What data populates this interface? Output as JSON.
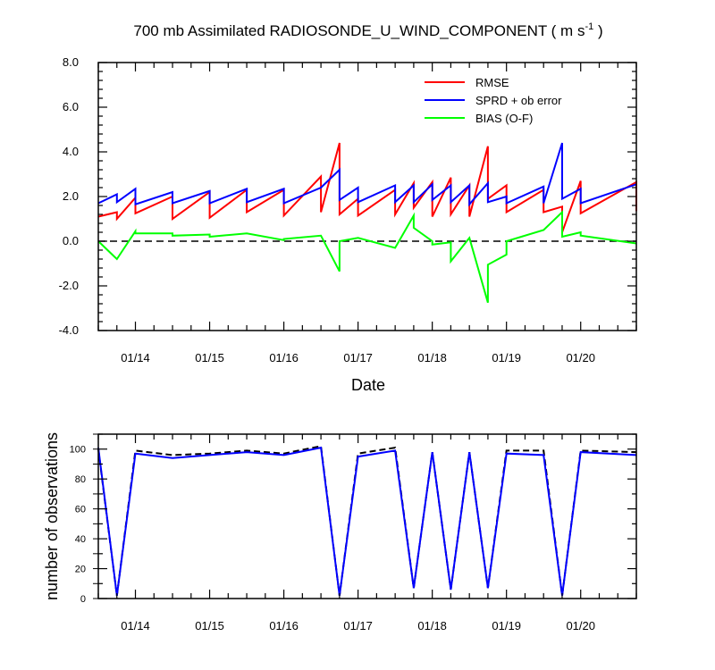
{
  "chart_data": [
    {
      "type": "line",
      "title": "700 mb Assimilated RADIOSONDE_U_WIND_COMPONENT ( m s",
      "title_sup": "-1",
      "title_end": " )",
      "xlabel": "Date",
      "ylabel": "",
      "x_tick_labels": [
        "01/14",
        "01/15",
        "01/16",
        "01/17",
        "01/18",
        "01/19",
        "01/20"
      ],
      "x_tick_positions": [
        13.75,
        14.75,
        15.75,
        16.75,
        17.75,
        18.75,
        19.75
      ],
      "xlim": [
        13.25,
        20.5
      ],
      "ylim": [
        -4.0,
        8.0
      ],
      "y_ticks": [
        -4.0,
        -2.0,
        0.0,
        2.0,
        4.0,
        6.0,
        8.0
      ],
      "y_tick_labels": [
        "-4.0",
        "-2.0",
        "0.0",
        "2.0",
        "4.0",
        "6.0",
        "8.0"
      ],
      "legend_position": "top-right",
      "zero_line": "dashed",
      "series": [
        {
          "name": "RMSE",
          "color": "#ff0000",
          "points": [
            [
              13.25,
              1.1
            ],
            [
              13.5,
              1.3
            ],
            [
              13.5,
              1.0
            ],
            [
              13.75,
              1.95
            ],
            [
              13.75,
              1.25
            ],
            [
              14.25,
              2.0
            ],
            [
              14.25,
              1.0
            ],
            [
              14.75,
              2.2
            ],
            [
              14.75,
              1.05
            ],
            [
              15.25,
              2.3
            ],
            [
              15.25,
              1.3
            ],
            [
              15.75,
              2.3
            ],
            [
              15.75,
              1.15
            ],
            [
              16.25,
              2.9
            ],
            [
              16.25,
              1.3
            ],
            [
              16.5,
              4.4
            ],
            [
              16.5,
              1.2
            ],
            [
              16.75,
              1.9
            ],
            [
              16.75,
              1.15
            ],
            [
              17.25,
              2.3
            ],
            [
              17.25,
              1.2
            ],
            [
              17.5,
              2.6
            ],
            [
              17.5,
              1.5
            ],
            [
              17.75,
              2.65
            ],
            [
              17.75,
              1.1
            ],
            [
              18.0,
              2.85
            ],
            [
              18.0,
              1.2
            ],
            [
              18.25,
              2.5
            ],
            [
              18.25,
              1.1
            ],
            [
              18.5,
              4.25
            ],
            [
              18.5,
              1.9
            ],
            [
              18.75,
              2.5
            ],
            [
              18.75,
              1.3
            ],
            [
              19.25,
              2.3
            ],
            [
              19.25,
              1.3
            ],
            [
              19.5,
              1.55
            ],
            [
              19.5,
              0.4
            ],
            [
              19.75,
              2.7
            ],
            [
              19.75,
              1.25
            ],
            [
              20.5,
              2.65
            ],
            [
              20.5,
              1.35
            ]
          ]
        },
        {
          "name": "SPRD + ob error",
          "color": "#0000ff",
          "points": [
            [
              13.25,
              1.7
            ],
            [
              13.5,
              2.1
            ],
            [
              13.5,
              1.75
            ],
            [
              13.75,
              2.35
            ],
            [
              13.75,
              1.65
            ],
            [
              14.25,
              2.2
            ],
            [
              14.25,
              1.7
            ],
            [
              14.75,
              2.25
            ],
            [
              14.75,
              1.7
            ],
            [
              15.25,
              2.35
            ],
            [
              15.25,
              1.75
            ],
            [
              15.75,
              2.35
            ],
            [
              15.75,
              1.7
            ],
            [
              16.25,
              2.4
            ],
            [
              16.5,
              3.2
            ],
            [
              16.5,
              1.85
            ],
            [
              16.75,
              2.4
            ],
            [
              16.75,
              1.75
            ],
            [
              17.25,
              2.5
            ],
            [
              17.25,
              1.75
            ],
            [
              17.5,
              2.5
            ],
            [
              17.5,
              1.75
            ],
            [
              17.75,
              2.55
            ],
            [
              17.75,
              1.85
            ],
            [
              18.0,
              2.5
            ],
            [
              18.0,
              1.75
            ],
            [
              18.25,
              2.5
            ],
            [
              18.25,
              1.65
            ],
            [
              18.5,
              2.6
            ],
            [
              18.5,
              1.75
            ],
            [
              18.75,
              2.0
            ],
            [
              18.75,
              1.7
            ],
            [
              19.25,
              2.45
            ],
            [
              19.25,
              1.7
            ],
            [
              19.5,
              4.4
            ],
            [
              19.5,
              1.9
            ],
            [
              19.75,
              2.35
            ],
            [
              19.75,
              1.7
            ],
            [
              20.5,
              2.55
            ]
          ]
        },
        {
          "name": "BIAS (O-F)",
          "color": "#00ff00",
          "points": [
            [
              13.25,
              0.0
            ],
            [
              13.5,
              -0.8
            ],
            [
              13.75,
              0.45
            ],
            [
              13.75,
              0.35
            ],
            [
              14.25,
              0.35
            ],
            [
              14.25,
              0.25
            ],
            [
              14.75,
              0.3
            ],
            [
              14.75,
              0.2
            ],
            [
              15.25,
              0.35
            ],
            [
              15.75,
              0.05
            ],
            [
              15.75,
              0.1
            ],
            [
              16.25,
              0.25
            ],
            [
              16.5,
              -1.35
            ],
            [
              16.5,
              0.0
            ],
            [
              16.75,
              0.15
            ],
            [
              17.25,
              -0.3
            ],
            [
              17.5,
              1.15
            ],
            [
              17.5,
              0.6
            ],
            [
              17.75,
              0.0
            ],
            [
              17.75,
              -0.15
            ],
            [
              18.0,
              -0.05
            ],
            [
              18.0,
              -0.9
            ],
            [
              18.25,
              0.15
            ],
            [
              18.5,
              -2.75
            ],
            [
              18.5,
              -1.05
            ],
            [
              18.75,
              -0.6
            ],
            [
              18.75,
              0.0
            ],
            [
              19.25,
              0.5
            ],
            [
              19.5,
              1.3
            ],
            [
              19.5,
              0.2
            ],
            [
              19.75,
              0.4
            ],
            [
              19.75,
              0.25
            ],
            [
              20.5,
              -0.1
            ]
          ]
        }
      ]
    },
    {
      "type": "line",
      "title": "",
      "xlabel": "",
      "ylabel": "number of observations",
      "x_tick_labels": [
        "01/14",
        "01/15",
        "01/16",
        "01/17",
        "01/18",
        "01/19",
        "01/20"
      ],
      "x_tick_positions": [
        13.75,
        14.75,
        15.75,
        16.75,
        17.75,
        18.75,
        19.75
      ],
      "xlim": [
        13.25,
        20.5
      ],
      "ylim": [
        0,
        110
      ],
      "y_ticks": [
        0,
        20,
        40,
        60,
        80,
        100
      ],
      "y_tick_labels": [
        "0",
        "20",
        "40",
        "60",
        "80",
        "100"
      ],
      "series": [
        {
          "name": "",
          "color": "#000000",
          "dashed": true,
          "points": [
            [
              13.25,
              100
            ],
            [
              13.5,
              2
            ],
            [
              13.75,
              99
            ],
            [
              14.25,
              96
            ],
            [
              14.75,
              97
            ],
            [
              15.25,
              99
            ],
            [
              15.75,
              97
            ],
            [
              16.25,
              102
            ],
            [
              16.5,
              2
            ],
            [
              16.75,
              97
            ],
            [
              17.25,
              101
            ],
            [
              17.5,
              7
            ],
            [
              17.75,
              98
            ],
            [
              18.0,
              6
            ],
            [
              18.25,
              98
            ],
            [
              18.5,
              7
            ],
            [
              18.75,
              99
            ],
            [
              19.25,
              99
            ],
            [
              19.5,
              2
            ],
            [
              19.75,
              99
            ],
            [
              20.5,
              98
            ]
          ]
        },
        {
          "name": "",
          "color": "#0000ff",
          "dashed": false,
          "points": [
            [
              13.25,
              101
            ],
            [
              13.5,
              2
            ],
            [
              13.75,
              97
            ],
            [
              14.25,
              94
            ],
            [
              14.75,
              96
            ],
            [
              15.25,
              98
            ],
            [
              15.75,
              96
            ],
            [
              16.25,
              101
            ],
            [
              16.5,
              2
            ],
            [
              16.75,
              95
            ],
            [
              17.25,
              99
            ],
            [
              17.5,
              7
            ],
            [
              17.75,
              98
            ],
            [
              18.0,
              6
            ],
            [
              18.25,
              98
            ],
            [
              18.5,
              7
            ],
            [
              18.75,
              97
            ],
            [
              19.25,
              96
            ],
            [
              19.5,
              2
            ],
            [
              19.75,
              98
            ],
            [
              20.5,
              96
            ]
          ]
        }
      ]
    }
  ]
}
